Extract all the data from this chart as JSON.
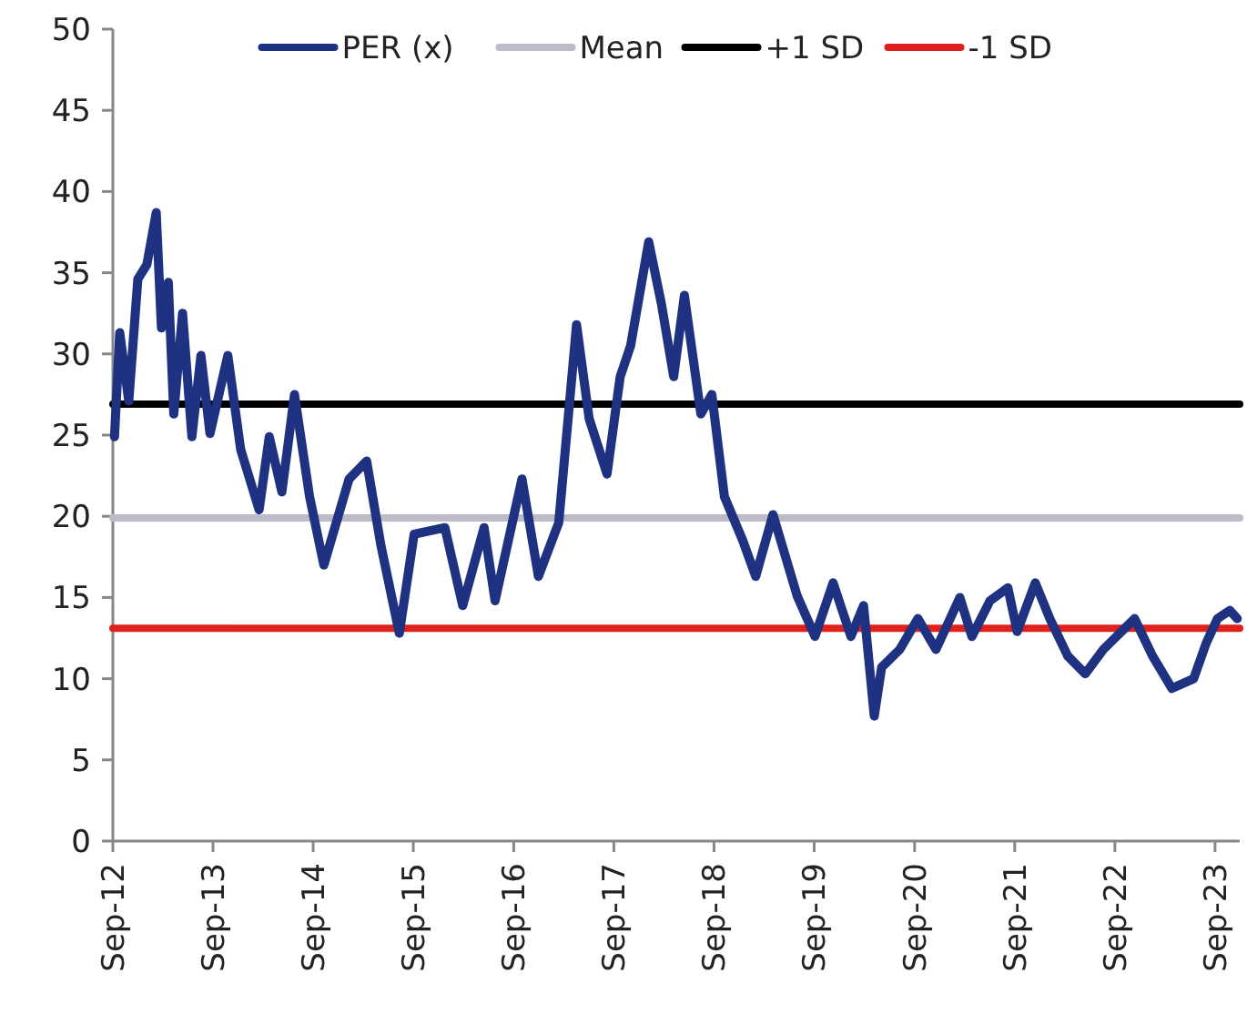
{
  "chart_data": {
    "type": "line",
    "legend": "top",
    "marker": "none",
    "line_style": "solid",
    "grid": false,
    "xlim": [
      "2012-09-01",
      "2023-11-30"
    ],
    "xticks": [
      {
        "value": "2012-09",
        "label": "Sep-12"
      },
      {
        "value": "2013-09",
        "label": "Sep-13"
      },
      {
        "value": "2014-09",
        "label": "Sep-14"
      },
      {
        "value": "2015-09",
        "label": "Sep-15"
      },
      {
        "value": "2016-09",
        "label": "Sep-16"
      },
      {
        "value": "2017-09",
        "label": "Sep-17"
      },
      {
        "value": "2018-09",
        "label": "Sep-18"
      },
      {
        "value": "2019-09",
        "label": "Sep-19"
      },
      {
        "value": "2020-09",
        "label": "Sep-20"
      },
      {
        "value": "2021-09",
        "label": "Sep-21"
      },
      {
        "value": "2022-09",
        "label": "Sep-22"
      },
      {
        "value": "2023-09",
        "label": "Sep-23"
      }
    ],
    "ylim": [
      0,
      50
    ],
    "yticks": [
      0,
      5,
      10,
      15,
      20,
      25,
      30,
      35,
      40,
      45,
      50
    ],
    "series": [
      {
        "name": "PER (x)",
        "color": "#1f3282",
        "x": [
          "2012-09-07",
          "2012-09-26",
          "2012-10-29",
          "2012-12-01",
          "2013-01-03",
          "2013-02-06",
          "2013-02-25",
          "2013-03-22",
          "2013-04-11",
          "2013-05-13",
          "2013-06-16",
          "2013-07-19",
          "2013-08-21",
          "2013-10-25",
          "2013-12-11",
          "2014-02-16",
          "2014-03-25",
          "2014-05-10",
          "2014-06-25",
          "2014-08-19",
          "2014-10-10",
          "2015-01-10",
          "2015-03-15",
          "2015-05-06",
          "2015-07-12",
          "2015-09-04",
          "2015-12-25",
          "2016-02-28",
          "2016-05-16",
          "2016-06-25",
          "2016-10-01",
          "2016-11-30",
          "2017-02-12",
          "2017-04-18",
          "2017-06-03",
          "2017-08-07",
          "2017-09-24",
          "2017-11-01",
          "2018-01-06",
          "2018-02-21",
          "2018-04-07",
          "2018-05-16",
          "2018-07-15",
          "2018-08-24",
          "2018-10-09",
          "2018-12-15",
          "2019-01-31",
          "2019-04-04",
          "2019-07-01",
          "2019-09-04",
          "2019-11-09",
          "2020-01-13",
          "2020-02-28",
          "2020-04-07",
          "2020-05-04",
          "2020-07-09",
          "2020-09-13",
          "2020-11-18",
          "2021-02-13",
          "2021-03-29",
          "2021-06-03",
          "2021-08-07",
          "2021-09-10",
          "2021-11-15",
          "2022-01-07",
          "2022-03-13",
          "2022-05-16",
          "2022-07-21",
          "2022-11-12",
          "2023-01-16",
          "2023-03-28",
          "2023-06-15",
          "2023-07-31",
          "2023-09-10",
          "2023-10-25",
          "2023-11-21"
        ],
        "values": [
          24.9,
          31.3,
          27.1,
          34.6,
          35.5,
          38.7,
          31.6,
          34.4,
          26.3,
          32.5,
          24.9,
          29.9,
          25.1,
          29.9,
          24.1,
          20.4,
          24.9,
          21.5,
          27.5,
          21.2,
          17.0,
          22.3,
          23.4,
          18.2,
          12.8,
          18.9,
          19.3,
          14.5,
          19.3,
          14.8,
          22.3,
          16.3,
          19.6,
          31.8,
          26.0,
          22.6,
          28.6,
          30.5,
          36.9,
          33.1,
          28.6,
          33.6,
          26.3,
          27.5,
          21.2,
          18.5,
          16.3,
          20.1,
          15.1,
          12.6,
          15.9,
          12.6,
          14.5,
          7.7,
          10.7,
          11.8,
          13.7,
          11.8,
          15.0,
          12.6,
          14.8,
          15.6,
          12.9,
          15.9,
          13.7,
          11.4,
          10.3,
          11.8,
          13.7,
          11.4,
          9.4,
          10.0,
          12.2,
          13.7,
          14.2,
          13.7
        ]
      },
      {
        "name": "Mean",
        "color": "#bcbbc7",
        "x": [
          "2012-09-01",
          "2023-11-30"
        ],
        "values": [
          19.9,
          19.9
        ]
      },
      {
        "name": "+1 SD",
        "color": "#000000",
        "x": [
          "2012-09-01",
          "2023-11-30"
        ],
        "values": [
          26.9,
          26.9
        ]
      },
      {
        "name": "-1 SD",
        "color": "#e0201b",
        "x": [
          "2012-09-01",
          "2023-11-30"
        ],
        "values": [
          13.1,
          13.1
        ]
      }
    ]
  }
}
